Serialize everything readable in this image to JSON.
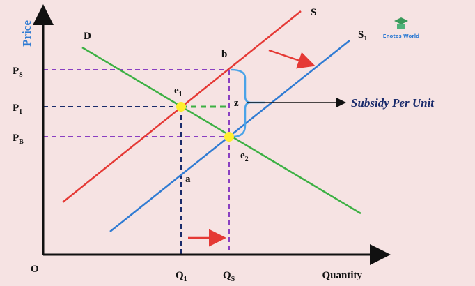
{
  "axes": {
    "y_label": "Price",
    "x_label": "Quantity",
    "origin": "O"
  },
  "curves": {
    "demand": "D",
    "supply": "S",
    "supply_shifted": {
      "main": "S",
      "sub": "1"
    }
  },
  "price_labels": {
    "ps": {
      "main": "P",
      "sub": "S"
    },
    "p1": {
      "main": "P",
      "sub": "1"
    },
    "pb": {
      "main": "P",
      "sub": "B"
    }
  },
  "quantity_labels": {
    "q1": {
      "main": "Q",
      "sub": "1"
    },
    "qs": {
      "main": "Q",
      "sub": "S"
    }
  },
  "points": {
    "b": "b",
    "e1": {
      "main": "e",
      "sub": "1"
    },
    "z": "z",
    "a": "a",
    "e2": {
      "main": "e",
      "sub": "2"
    }
  },
  "annotation": "Subsidy Per Unit",
  "logo": "Enotes World"
}
